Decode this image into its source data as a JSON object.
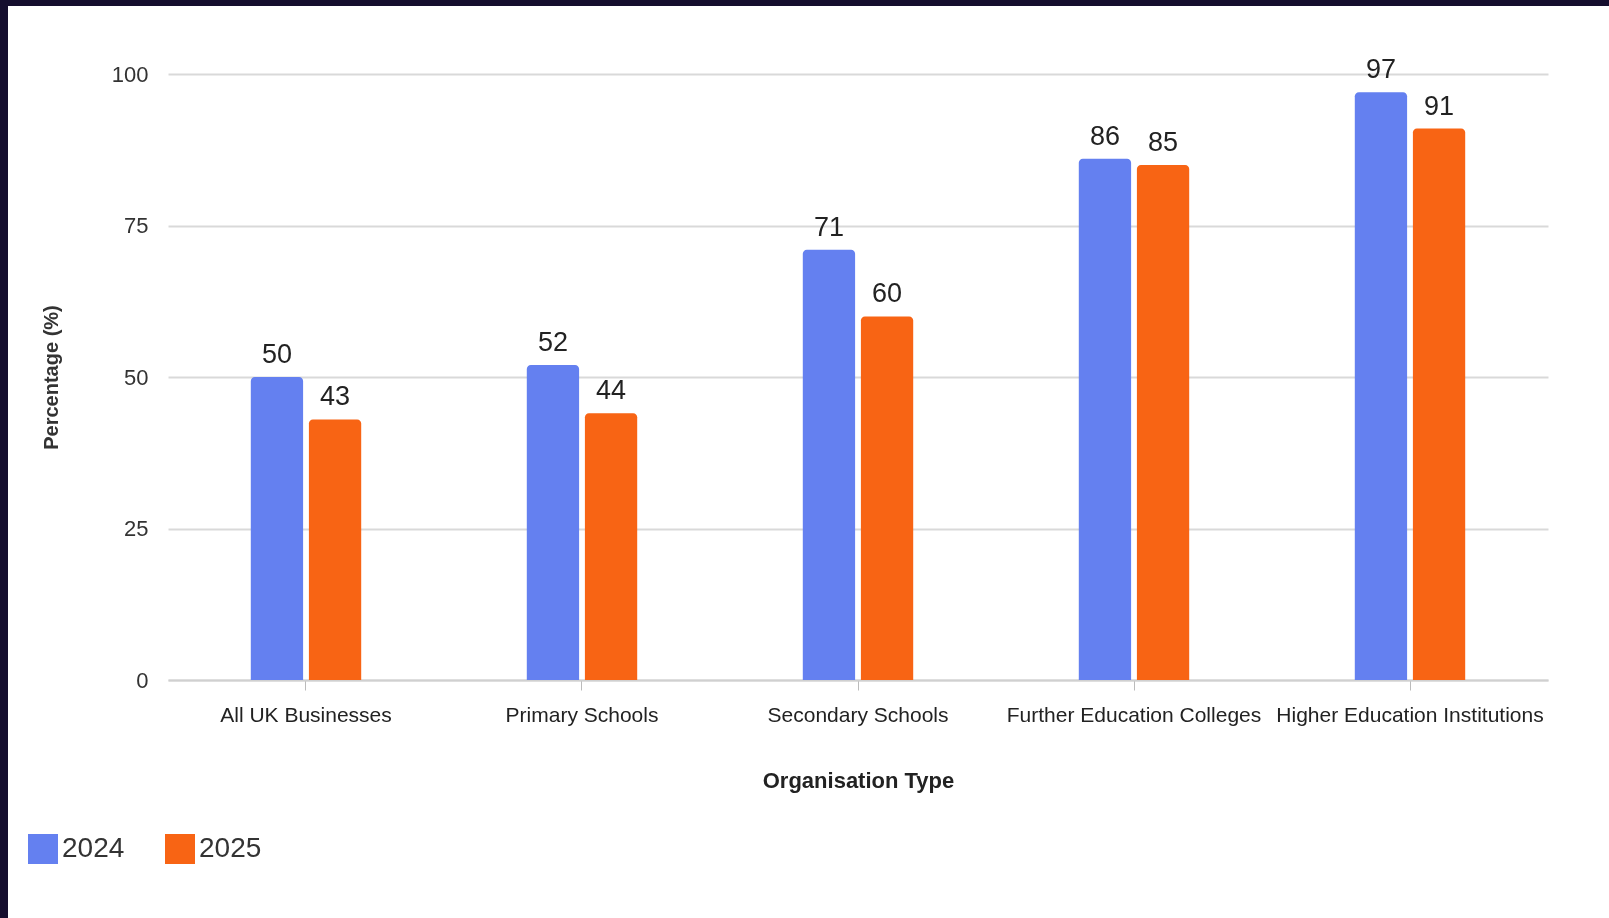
{
  "chart_data": {
    "type": "bar",
    "xlabel": "Organisation Type",
    "ylabel": "Percentage (%)",
    "categories": [
      "All UK Businesses",
      "Primary Schools",
      "Secondary Schools",
      "Further Education Colleges",
      "Higher Education Institutions"
    ],
    "series": [
      {
        "name": "2024",
        "color": "#6480f0",
        "values": [
          50,
          52,
          71,
          86,
          97
        ]
      },
      {
        "name": "2025",
        "color": "#f86414",
        "values": [
          43,
          44,
          60,
          85,
          91
        ]
      }
    ],
    "ylim": [
      0,
      100
    ],
    "yticks": [
      0,
      25,
      50,
      75,
      100
    ],
    "grid": "y",
    "legend": "bottom left",
    "data_labels": true
  }
}
